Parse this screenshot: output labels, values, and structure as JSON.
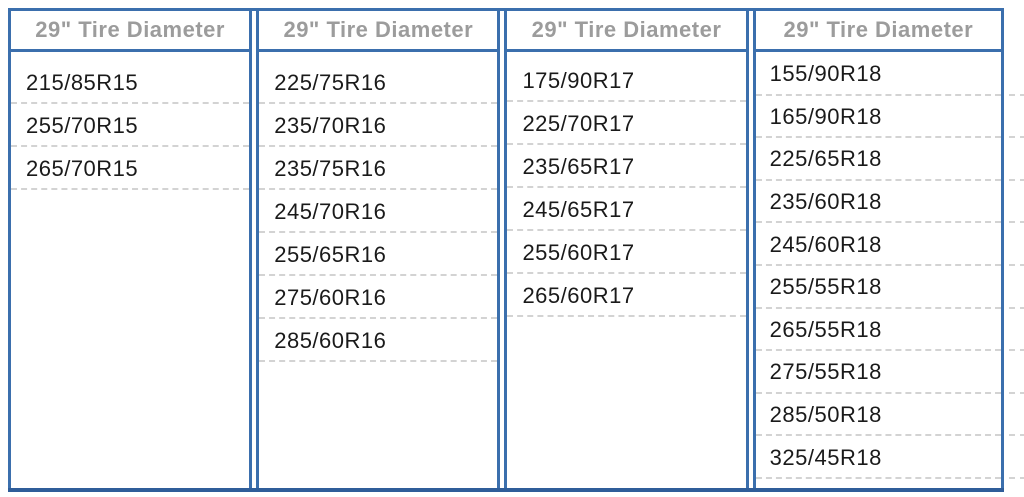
{
  "colors": {
    "border_blue": "#3b6fad",
    "border_blue_bottom": "#2f5d99",
    "header_text_gray": "#9c9c9c",
    "body_text": "#1a1a1a",
    "row_divider_gray": "#d3d3d3",
    "background": "#ffffff"
  },
  "table": {
    "columns": [
      {
        "header": "29\" Tire Diameter",
        "sizes": [
          "215/85R15",
          "255/70R15",
          "265/70R15"
        ]
      },
      {
        "header": "29\" Tire Diameter",
        "sizes": [
          "225/75R16",
          "235/70R16",
          "235/75R16",
          "245/70R16",
          "255/65R16",
          "275/60R16",
          "285/60R16"
        ]
      },
      {
        "header": "29\" Tire Diameter",
        "sizes": [
          "175/90R17",
          "225/70R17",
          "235/65R17",
          "245/65R17",
          "255/60R17",
          "265/60R17"
        ]
      },
      {
        "header": "29\" Tire Diameter",
        "sizes": [
          "155/90R18",
          "165/90R18",
          "225/65R18",
          "235/60R18",
          "245/60R18",
          "255/55R18",
          "265/55R18",
          "275/55R18",
          "285/50R18",
          "325/45R18"
        ]
      }
    ]
  }
}
